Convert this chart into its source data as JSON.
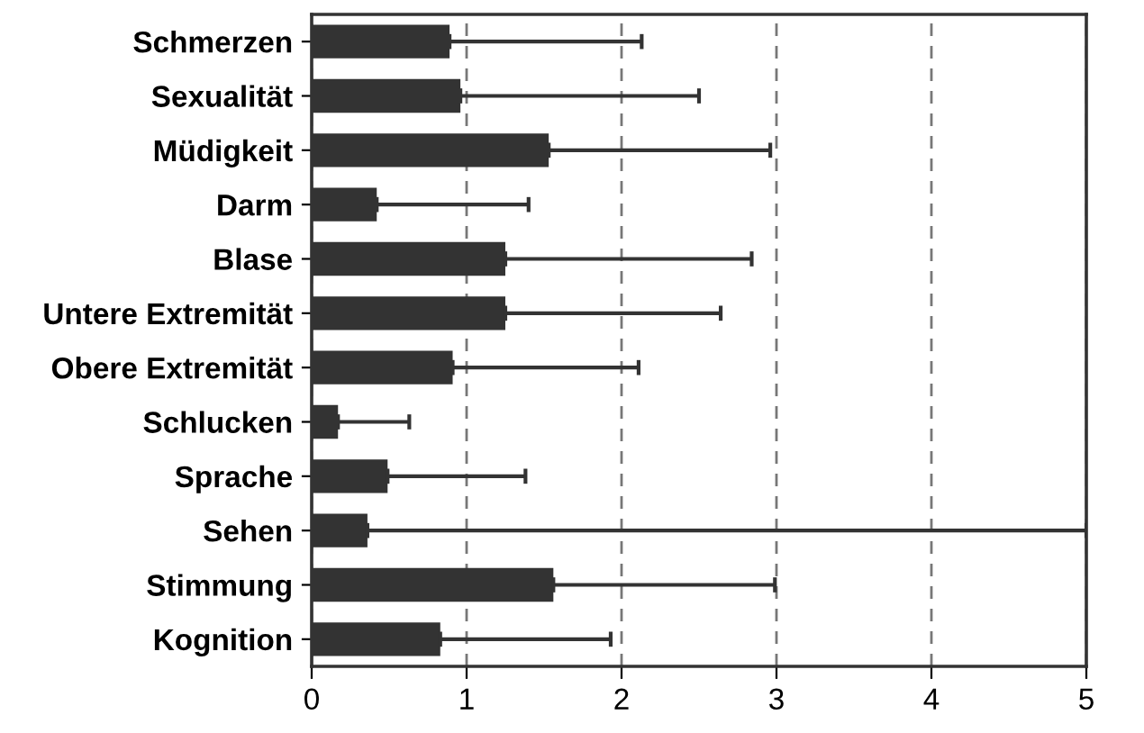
{
  "chart_data": {
    "type": "bar",
    "orientation": "horizontal",
    "categories": [
      "Schmerzen",
      "Sexualität",
      "Müdigkeit",
      "Darm",
      "Blase",
      "Untere Extremität",
      "Obere Extremität",
      "Schlucken",
      "Sprache",
      "Sehen",
      "Stimmung",
      "Kognition"
    ],
    "values": [
      0.89,
      0.96,
      1.53,
      0.42,
      1.25,
      1.25,
      0.91,
      0.17,
      0.49,
      0.36,
      1.56,
      0.83
    ],
    "errors": [
      [
        0.89,
        2.13
      ],
      [
        0.96,
        2.5
      ],
      [
        1.53,
        2.96
      ],
      [
        0.42,
        1.4
      ],
      [
        1.25,
        2.84
      ],
      [
        1.25,
        2.64
      ],
      [
        0.91,
        2.11
      ],
      [
        0.17,
        0.63
      ],
      [
        0.49,
        1.38
      ],
      [
        0.36,
        5
      ],
      [
        1.56,
        2.99
      ],
      [
        0.83,
        1.93
      ]
    ],
    "color": "#333333",
    "xlim": [
      0,
      5
    ],
    "xticks": [
      0,
      1,
      2,
      3,
      4,
      5
    ],
    "grid": "x",
    "line_style": "dashed"
  }
}
